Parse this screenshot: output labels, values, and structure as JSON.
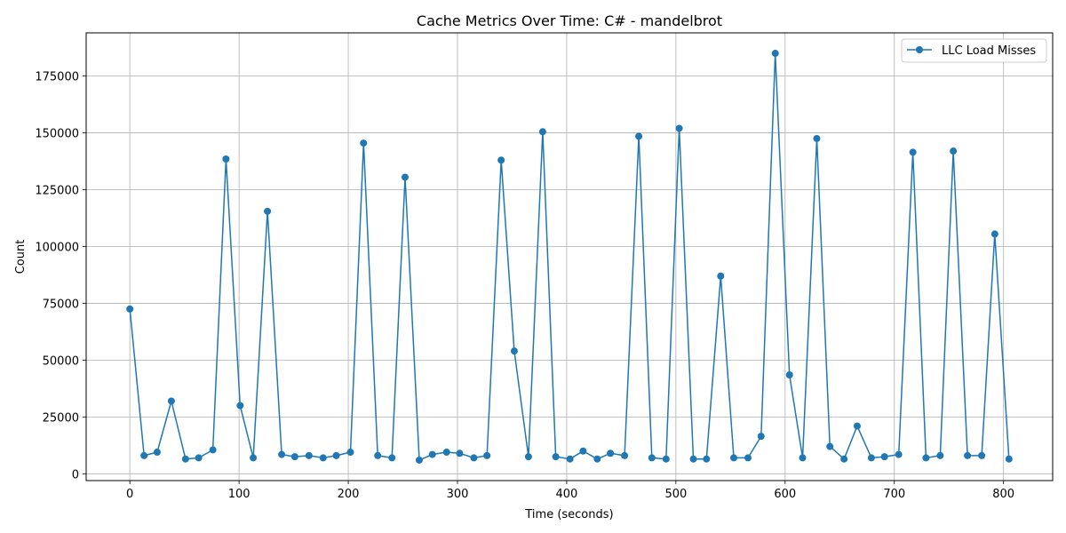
{
  "chart_data": {
    "type": "line",
    "title": "Cache Metrics Over Time: C# - mandelbrot",
    "xlabel": "Time (seconds)",
    "ylabel": "Count",
    "xlim": [
      -40,
      845
    ],
    "ylim": [
      -3000,
      194000
    ],
    "xticks": [
      0,
      100,
      200,
      300,
      400,
      500,
      600,
      700,
      800
    ],
    "yticks": [
      0,
      25000,
      50000,
      75000,
      100000,
      125000,
      150000,
      175000
    ],
    "grid": true,
    "legend_position": "top-right",
    "color": "#1f77b4",
    "series": [
      {
        "name": "LLC Load Misses",
        "x": [
          0,
          13,
          25,
          38,
          51,
          63,
          76,
          88,
          101,
          113,
          126,
          139,
          151,
          164,
          177,
          189,
          202,
          214,
          227,
          240,
          252,
          265,
          277,
          290,
          302,
          315,
          327,
          340,
          352,
          365,
          378,
          390,
          403,
          415,
          428,
          440,
          453,
          466,
          478,
          491,
          503,
          516,
          528,
          541,
          553,
          566,
          578,
          591,
          604,
          616,
          629,
          641,
          654,
          666,
          679,
          691,
          704,
          717,
          729,
          742,
          754,
          767,
          780,
          792,
          805
        ],
        "y": [
          72500,
          8000,
          9500,
          32000,
          6500,
          7000,
          10500,
          138500,
          30000,
          7000,
          115500,
          8500,
          7500,
          8000,
          7000,
          8000,
          9500,
          145500,
          8000,
          7000,
          130500,
          6000,
          8500,
          9500,
          9000,
          7000,
          8000,
          138000,
          54000,
          7500,
          150500,
          7500,
          6500,
          10000,
          6500,
          9000,
          8000,
          148500,
          7000,
          6500,
          152000,
          6500,
          6500,
          87000,
          7000,
          7000,
          16500,
          185000,
          43500,
          7000,
          147500,
          12000,
          6500,
          21000,
          7000,
          7500,
          8500,
          141500,
          7000,
          8000,
          142000,
          8000,
          8000,
          105500,
          6500
        ]
      }
    ]
  }
}
